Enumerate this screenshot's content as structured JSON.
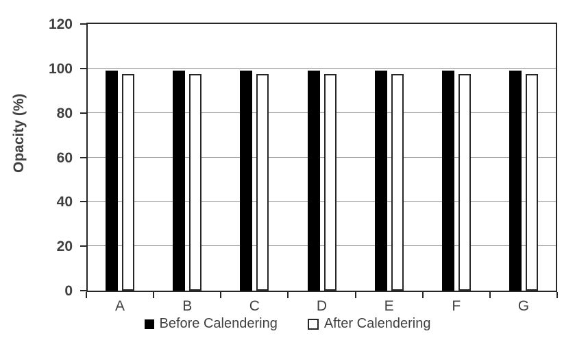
{
  "figure": {
    "y_axis_label": "Opacity (%)"
  },
  "legend": {
    "before_label": "Before Calendering",
    "after_label": "After Calendering"
  },
  "colors": {
    "before_fill": "#000000",
    "after_fill": "#ffffff",
    "bar_border": "#262626",
    "axis_line": "#262626",
    "gridline": "#8c8c8c",
    "label_text": "#404040"
  },
  "chart_data": {
    "type": "bar",
    "title": "",
    "xlabel": "",
    "ylabel": "Opacity (%)",
    "categories": [
      "A",
      "B",
      "C",
      "D",
      "E",
      "F",
      "G"
    ],
    "series": [
      {
        "name": "Before Calendering",
        "fill": "black",
        "values": [
          99,
          99,
          99,
          99,
          99,
          99,
          99
        ]
      },
      {
        "name": "After Calendering",
        "fill": "white",
        "values": [
          97.5,
          97.5,
          97.5,
          97.5,
          97.5,
          97.5,
          97.5
        ]
      }
    ],
    "ylim": [
      0,
      120
    ],
    "yticks": [
      0,
      20,
      40,
      60,
      80,
      100,
      120
    ],
    "grid": true,
    "legend_position": "bottom"
  }
}
